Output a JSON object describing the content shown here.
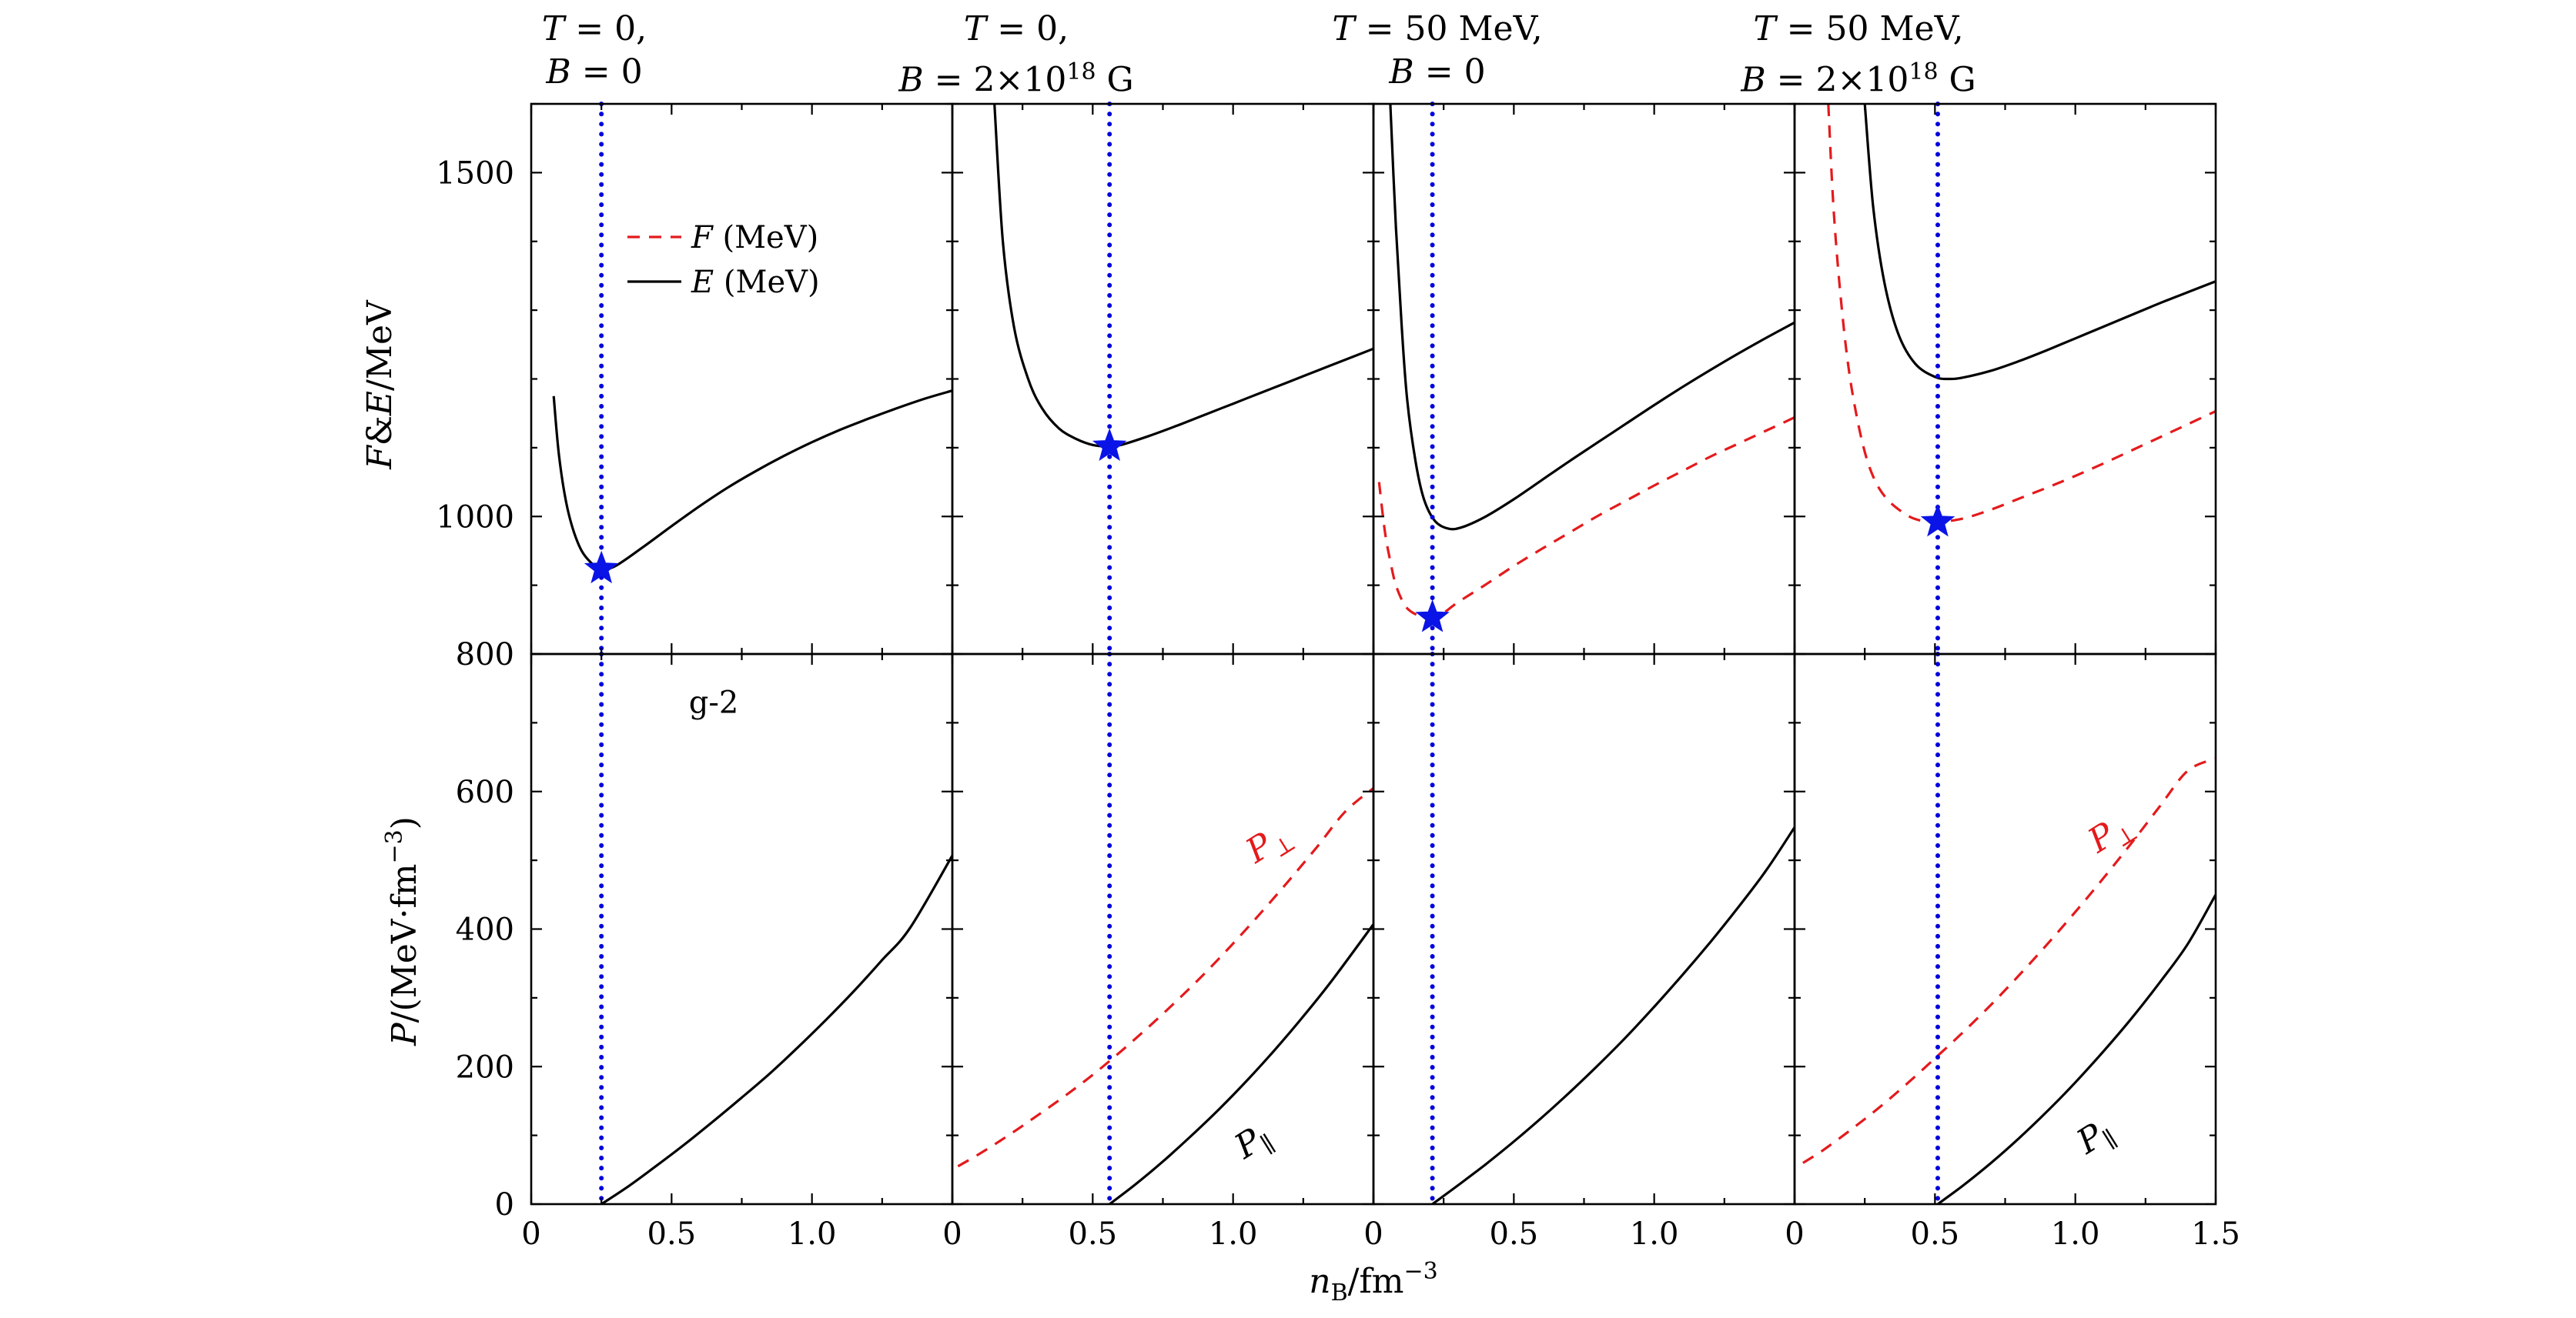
{
  "figure": {
    "xlabel": "n_B/fm^-3",
    "top_ylabel": "F&E/MeV",
    "bottom_ylabel": "P/(MeV·fm^-3)"
  },
  "panel_titles": [
    {
      "line1": "T = 0,",
      "line2": "B = 0"
    },
    {
      "line1": "T = 0,",
      "line2": "B = 2×10^18 G"
    },
    {
      "line1": "T = 50 MeV,",
      "line2": "B = 0"
    },
    {
      "line1": "T = 50 MeV,",
      "line2": "B = 2×10^18 G"
    }
  ],
  "legend": {
    "F_label": "F (MeV)",
    "E_label": "E (MeV)",
    "placement": "top-left of first panel"
  },
  "colors": {
    "E": "#000000",
    "F": "#e41a1c",
    "P_parallel": "#000000",
    "P_perp": "#e41a1c",
    "saturation_line": "#0000dd",
    "star": "#0a14e6"
  },
  "chart_data": [
    {
      "type": "line",
      "panel": "top-1",
      "title": "T = 0, B = 0",
      "xlabel": "n_B/fm^-3",
      "ylabel": "F&E/MeV",
      "xlim": [
        0,
        1.5
      ],
      "ylim": [
        800,
        1600
      ],
      "yticks": [
        800,
        1000,
        1500
      ],
      "series": [
        {
          "name": "E (MeV)",
          "style": "solid",
          "x": [
            0.08,
            0.1,
            0.13,
            0.17,
            0.21,
            0.25,
            0.3,
            0.4,
            0.5,
            0.6,
            0.7,
            0.8,
            0.9,
            1.0,
            1.1,
            1.2,
            1.3,
            1.4,
            1.5
          ],
          "y": [
            1175,
            1085,
            1010,
            958,
            934,
            924,
            928,
            956,
            986,
            1015,
            1042,
            1066,
            1088,
            1108,
            1126,
            1142,
            1157,
            1171,
            1183
          ]
        }
      ],
      "markers": [
        {
          "x": 0.25,
          "y": 924,
          "shape": "star"
        }
      ],
      "saturation_density": 0.25,
      "annotations": []
    },
    {
      "type": "line",
      "panel": "top-2",
      "title": "T = 0, B = 2×10^18 G",
      "xlim": [
        0,
        1.5
      ],
      "ylim": [
        800,
        1600
      ],
      "series": [
        {
          "name": "E (MeV)",
          "style": "solid",
          "x": [
            0.15,
            0.18,
            0.22,
            0.27,
            0.32,
            0.38,
            0.44,
            0.5,
            0.55,
            0.6,
            0.7,
            0.8,
            0.9,
            1.0,
            1.1,
            1.2,
            1.3,
            1.4,
            1.5
          ],
          "y": [
            1600,
            1400,
            1275,
            1200,
            1157,
            1128,
            1113,
            1104,
            1102,
            1104,
            1117,
            1132,
            1148,
            1164,
            1180,
            1196,
            1212,
            1228,
            1244
          ]
        }
      ],
      "markers": [
        {
          "x": 0.56,
          "y": 1102,
          "shape": "star"
        }
      ],
      "saturation_density": 0.56,
      "annotations": []
    },
    {
      "type": "line",
      "panel": "top-3",
      "title": "T = 50 MeV, B = 0",
      "xlim": [
        0,
        1.5
      ],
      "ylim": [
        800,
        1600
      ],
      "series": [
        {
          "name": "E (MeV)",
          "style": "solid",
          "x": [
            0.06,
            0.08,
            0.1,
            0.12,
            0.15,
            0.18,
            0.22,
            0.27,
            0.32,
            0.4,
            0.5,
            0.6,
            0.7,
            0.8,
            0.9,
            1.0,
            1.1,
            1.2,
            1.3,
            1.4,
            1.5
          ],
          "y": [
            1600,
            1420,
            1280,
            1170,
            1080,
            1025,
            993,
            982,
            985,
            1000,
            1025,
            1053,
            1081,
            1108,
            1135,
            1162,
            1188,
            1213,
            1237,
            1260,
            1282
          ]
        },
        {
          "name": "F (MeV)",
          "style": "dashed",
          "x": [
            0.02,
            0.04,
            0.06,
            0.08,
            0.11,
            0.14,
            0.18,
            0.21,
            0.25,
            0.3,
            0.4,
            0.5,
            0.6,
            0.7,
            0.8,
            0.9,
            1.0,
            1.1,
            1.2,
            1.3,
            1.4,
            1.5
          ],
          "y": [
            1050,
            980,
            935,
            900,
            872,
            860,
            854,
            853,
            860,
            875,
            901,
            928,
            953,
            977,
            1001,
            1023,
            1045,
            1066,
            1087,
            1106,
            1125,
            1144
          ]
        }
      ],
      "markers": [
        {
          "x": 0.21,
          "y": 853,
          "shape": "star"
        }
      ],
      "saturation_density": 0.21,
      "annotations": []
    },
    {
      "type": "line",
      "panel": "top-4",
      "title": "T = 50 MeV, B = 2×10^18 G",
      "xlim": [
        0,
        1.5
      ],
      "ylim": [
        800,
        1600
      ],
      "series": [
        {
          "name": "E (MeV)",
          "style": "solid",
          "x": [
            0.25,
            0.28,
            0.32,
            0.37,
            0.43,
            0.5,
            0.55,
            0.6,
            0.7,
            0.8,
            0.9,
            1.0,
            1.1,
            1.2,
            1.3,
            1.4,
            1.5
          ],
          "y": [
            1600,
            1450,
            1340,
            1265,
            1222,
            1203,
            1200,
            1202,
            1212,
            1226,
            1242,
            1259,
            1276,
            1293,
            1310,
            1326,
            1342
          ]
        },
        {
          "name": "F (MeV)",
          "style": "dashed",
          "x": [
            0.12,
            0.14,
            0.17,
            0.2,
            0.24,
            0.28,
            0.33,
            0.4,
            0.45,
            0.51,
            0.6,
            0.7,
            0.8,
            0.9,
            1.0,
            1.1,
            1.2,
            1.3,
            1.4,
            1.5
          ],
          "y": [
            1600,
            1440,
            1295,
            1195,
            1110,
            1058,
            1025,
            1002,
            994,
            992,
            997,
            1010,
            1026,
            1042,
            1059,
            1077,
            1096,
            1115,
            1134,
            1153
          ]
        }
      ],
      "markers": [
        {
          "x": 0.51,
          "y": 992,
          "shape": "star"
        }
      ],
      "saturation_density": 0.51,
      "annotations": []
    },
    {
      "type": "line",
      "panel": "bottom-1",
      "xlabel": "n_B/fm^-3",
      "ylabel": "P/(MeV·fm^-3)",
      "xlim": [
        0,
        1.5
      ],
      "ylim": [
        0,
        800
      ],
      "yticks": [
        0,
        200,
        400,
        600,
        800
      ],
      "xticks": [
        0,
        0.5,
        1.0
      ],
      "series": [
        {
          "name": "P",
          "style": "solid",
          "x": [
            0.25,
            0.35,
            0.45,
            0.55,
            0.65,
            0.75,
            0.85,
            0.95,
            1.05,
            1.15,
            1.25,
            1.35,
            1.5
          ],
          "y": [
            0,
            27,
            57,
            88,
            121,
            155,
            190,
            228,
            268,
            310,
            355,
            402,
            507
          ]
        }
      ],
      "saturation_density": 0.25,
      "annotations": [
        {
          "text": "g-2"
        }
      ]
    },
    {
      "type": "line",
      "panel": "bottom-2",
      "xlim": [
        0,
        1.5
      ],
      "ylim": [
        0,
        800
      ],
      "xticks": [
        0,
        0.5,
        1.0
      ],
      "series": [
        {
          "name": "P_∥",
          "style": "solid",
          "x": [
            0.56,
            0.65,
            0.75,
            0.85,
            0.95,
            1.05,
            1.15,
            1.25,
            1.35,
            1.5
          ],
          "y": [
            0,
            28,
            62,
            99,
            138,
            180,
            225,
            273,
            324,
            407
          ]
        },
        {
          "name": "P_⊥",
          "style": "dashed",
          "x": [
            0.02,
            0.1,
            0.2,
            0.3,
            0.4,
            0.5,
            0.6,
            0.7,
            0.8,
            0.9,
            1.0,
            1.1,
            1.2,
            1.3,
            1.4,
            1.5
          ],
          "y": [
            55,
            74,
            100,
            128,
            157,
            188,
            222,
            258,
            296,
            336,
            379,
            424,
            471,
            520,
            571,
            605
          ]
        }
      ],
      "saturation_density": 0.56,
      "annotations": [
        {
          "text": "P_⊥"
        },
        {
          "text": "P_∥"
        }
      ]
    },
    {
      "type": "line",
      "panel": "bottom-3",
      "xlim": [
        0,
        1.5
      ],
      "ylim": [
        0,
        800
      ],
      "xticks": [
        0,
        0.5,
        1.0
      ],
      "series": [
        {
          "name": "P",
          "style": "solid",
          "x": [
            0.21,
            0.3,
            0.4,
            0.5,
            0.6,
            0.7,
            0.8,
            0.9,
            1.0,
            1.1,
            1.2,
            1.3,
            1.4,
            1.5
          ],
          "y": [
            0,
            27,
            58,
            91,
            126,
            163,
            202,
            243,
            287,
            333,
            381,
            432,
            486,
            548
          ]
        }
      ],
      "saturation_density": 0.21,
      "annotations": []
    },
    {
      "type": "line",
      "panel": "bottom-4",
      "xlim": [
        0,
        1.5
      ],
      "ylim": [
        0,
        800
      ],
      "xticks": [
        0,
        0.5,
        1.0,
        1.5
      ],
      "series": [
        {
          "name": "P_∥",
          "style": "solid",
          "x": [
            0.51,
            0.6,
            0.7,
            0.8,
            0.9,
            1.0,
            1.1,
            1.2,
            1.3,
            1.4,
            1.5
          ],
          "y": [
            0,
            27,
            60,
            96,
            135,
            177,
            222,
            270,
            322,
            378,
            450
          ]
        },
        {
          "name": "P_⊥",
          "style": "dashed",
          "x": [
            0.03,
            0.1,
            0.2,
            0.3,
            0.4,
            0.5,
            0.6,
            0.7,
            0.8,
            0.9,
            1.0,
            1.1,
            1.2,
            1.3,
            1.4,
            1.5
          ],
          "y": [
            60,
            78,
            108,
            140,
            175,
            212,
            250,
            290,
            333,
            378,
            425,
            474,
            525,
            578,
            630,
            648
          ]
        }
      ],
      "saturation_density": 0.51,
      "annotations": [
        {
          "text": "P_⊥"
        },
        {
          "text": "P_∥"
        }
      ]
    }
  ]
}
